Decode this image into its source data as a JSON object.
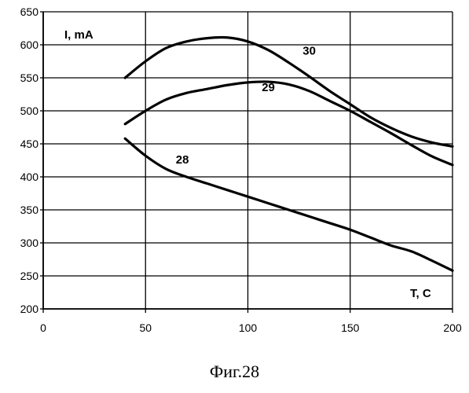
{
  "chart_data": {
    "type": "line",
    "xlabel": "T, C",
    "ylabel": "I, mA",
    "xlim": [
      0,
      200
    ],
    "ylim": [
      200,
      650
    ],
    "x_ticks": [
      0,
      50,
      100,
      150,
      200
    ],
    "y_ticks": [
      200,
      250,
      300,
      350,
      400,
      450,
      500,
      550,
      600,
      650
    ],
    "grid": true,
    "series": [
      {
        "name": "30",
        "points": [
          [
            40,
            550
          ],
          [
            50,
            575
          ],
          [
            60,
            595
          ],
          [
            70,
            605
          ],
          [
            80,
            610
          ],
          [
            90,
            611
          ],
          [
            100,
            605
          ],
          [
            110,
            592
          ],
          [
            120,
            573
          ],
          [
            130,
            552
          ],
          [
            140,
            530
          ],
          [
            150,
            510
          ],
          [
            160,
            490
          ],
          [
            170,
            474
          ],
          [
            180,
            461
          ],
          [
            190,
            452
          ],
          [
            200,
            446
          ]
        ]
      },
      {
        "name": "29",
        "points": [
          [
            40,
            480
          ],
          [
            50,
            500
          ],
          [
            60,
            517
          ],
          [
            70,
            527
          ],
          [
            80,
            533
          ],
          [
            90,
            539
          ],
          [
            100,
            543
          ],
          [
            110,
            544
          ],
          [
            120,
            540
          ],
          [
            130,
            530
          ],
          [
            140,
            515
          ],
          [
            150,
            500
          ],
          [
            160,
            483
          ],
          [
            170,
            466
          ],
          [
            180,
            448
          ],
          [
            190,
            431
          ],
          [
            200,
            418
          ]
        ]
      },
      {
        "name": "28",
        "points": [
          [
            40,
            458
          ],
          [
            50,
            432
          ],
          [
            60,
            412
          ],
          [
            70,
            400
          ],
          [
            80,
            390
          ],
          [
            90,
            380
          ],
          [
            100,
            370
          ],
          [
            110,
            360
          ],
          [
            120,
            350
          ],
          [
            130,
            340
          ],
          [
            140,
            330
          ],
          [
            150,
            320
          ],
          [
            160,
            308
          ],
          [
            170,
            296
          ],
          [
            180,
            287
          ],
          [
            190,
            273
          ],
          [
            200,
            258
          ]
        ]
      }
    ]
  },
  "caption": "Фиг.28"
}
